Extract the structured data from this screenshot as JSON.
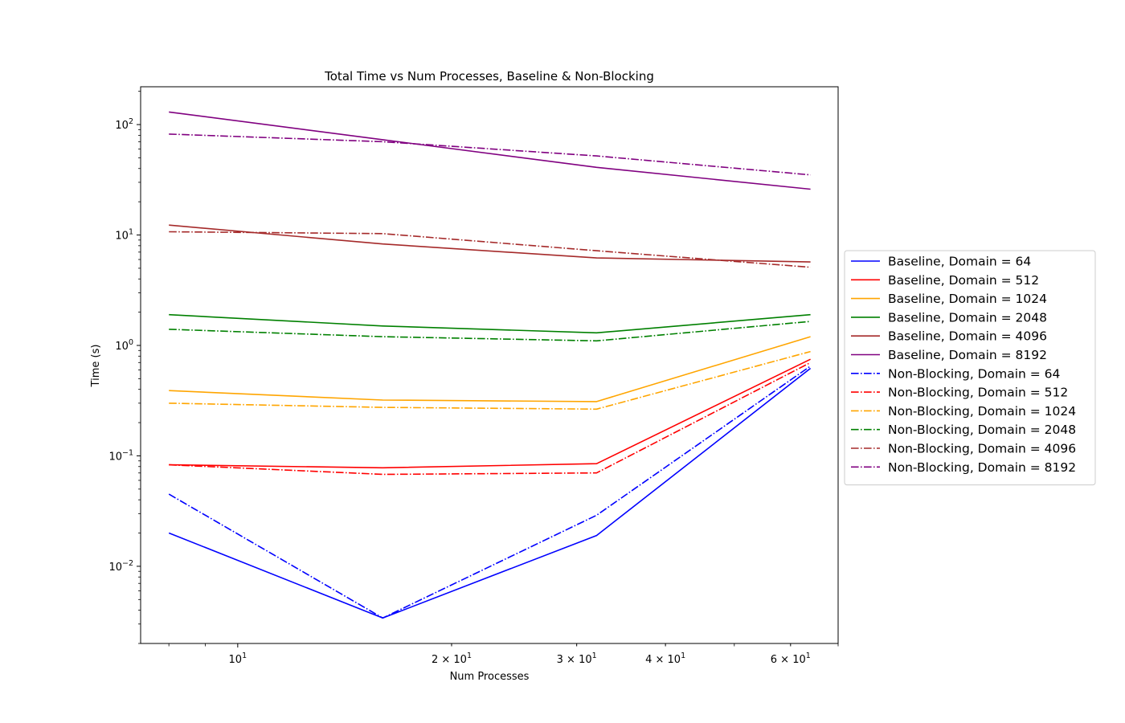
{
  "chart_data": {
    "type": "line",
    "title": "Total Time vs Num Processes, Baseline & Non-Blocking",
    "xlabel": "Num Processes",
    "ylabel": "Time (s)",
    "xscale": "log",
    "yscale": "log",
    "xlim": [
      7.3,
      70
    ],
    "ylim": [
      0.002,
      220
    ],
    "x": [
      8,
      16,
      32,
      64
    ],
    "x_ticks": [
      {
        "value": 10,
        "base": "10",
        "exp": "1"
      },
      {
        "value": 20,
        "base": "2 × 10",
        "exp": "1"
      },
      {
        "value": 30,
        "base": "3 × 10",
        "exp": "1"
      },
      {
        "value": 40,
        "base": "4 × 10",
        "exp": "1"
      },
      {
        "value": 60,
        "base": "6 × 10",
        "exp": "1"
      }
    ],
    "y_ticks": [
      {
        "value": 0.01,
        "base": "10",
        "exp": "−2"
      },
      {
        "value": 0.1,
        "base": "10",
        "exp": "−1"
      },
      {
        "value": 1,
        "base": "10",
        "exp": "0"
      },
      {
        "value": 10,
        "base": "10",
        "exp": "1"
      },
      {
        "value": 100,
        "base": "10",
        "exp": "2"
      }
    ],
    "grid": false,
    "legend_position": "outside right",
    "series": [
      {
        "name": "Baseline, Domain = 64",
        "color": "#0000ff",
        "style": "solid",
        "values": [
          0.02,
          0.0034,
          0.019,
          0.62
        ]
      },
      {
        "name": "Baseline, Domain = 512",
        "color": "#ff0000",
        "style": "solid",
        "values": [
          0.083,
          0.078,
          0.085,
          0.75
        ]
      },
      {
        "name": "Baseline, Domain = 1024",
        "color": "#ffa500",
        "style": "solid",
        "values": [
          0.39,
          0.32,
          0.31,
          1.2
        ]
      },
      {
        "name": "Baseline, Domain = 2048",
        "color": "#008000",
        "style": "solid",
        "values": [
          1.9,
          1.5,
          1.3,
          1.9
        ]
      },
      {
        "name": "Baseline, Domain = 4096",
        "color": "#a52a2a",
        "style": "solid",
        "values": [
          12.3,
          8.3,
          6.2,
          5.7
        ]
      },
      {
        "name": "Baseline, Domain = 8192",
        "color": "#800080",
        "style": "solid",
        "values": [
          130,
          73,
          41,
          26
        ]
      },
      {
        "name": "Non-Blocking, Domain = 64",
        "color": "#0000ff",
        "style": "dashdot",
        "values": [
          0.045,
          0.0034,
          0.029,
          0.65
        ]
      },
      {
        "name": "Non-Blocking, Domain = 512",
        "color": "#ff0000",
        "style": "dashdot",
        "values": [
          0.083,
          0.068,
          0.07,
          0.7
        ]
      },
      {
        "name": "Non-Blocking, Domain = 1024",
        "color": "#ffa500",
        "style": "dashdot",
        "values": [
          0.3,
          0.275,
          0.265,
          0.88
        ]
      },
      {
        "name": "Non-Blocking, Domain = 2048",
        "color": "#008000",
        "style": "dashdot",
        "values": [
          1.4,
          1.2,
          1.1,
          1.65
        ]
      },
      {
        "name": "Non-Blocking, Domain = 4096",
        "color": "#a52a2a",
        "style": "dashdot",
        "values": [
          10.7,
          10.3,
          7.2,
          5.1
        ]
      },
      {
        "name": "Non-Blocking, Domain = 8192",
        "color": "#800080",
        "style": "dashdot",
        "values": [
          82,
          70,
          52,
          35
        ]
      }
    ]
  }
}
